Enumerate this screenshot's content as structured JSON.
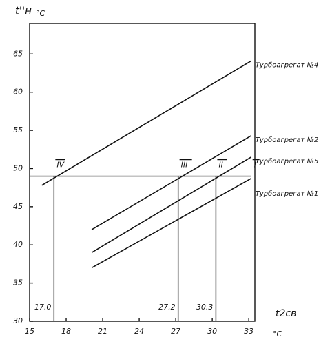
{
  "chart_data": {
    "type": "line",
    "y_label": "t''н",
    "y_unit": "°C",
    "x_label": "t2св",
    "x_unit": "°C",
    "xlim": [
      15,
      33.5
    ],
    "ylim": [
      30,
      69
    ],
    "xticks": [
      15,
      18,
      21,
      24,
      27,
      30,
      33
    ],
    "yticks": [
      30,
      35,
      40,
      45,
      50,
      55,
      60,
      65
    ],
    "series": [
      {
        "name": "Турбоагрегат №4",
        "color": "#111111",
        "x": [
          16.0,
          33.2
        ],
        "values": [
          47.8,
          64.1
        ]
      },
      {
        "name": "Турбоагрегат №2",
        "color": "#111111",
        "x": [
          20.1,
          33.2
        ],
        "values": [
          42.0,
          54.3
        ]
      },
      {
        "name": "Турбоагрегат №5",
        "color": "#111111",
        "x": [
          20.1,
          33.2
        ],
        "values": [
          39.0,
          51.5
        ]
      },
      {
        "name": "Турбоагрегат №1",
        "color": "#111111",
        "x": [
          20.1,
          33.2
        ],
        "values": [
          37.0,
          48.7
        ]
      }
    ],
    "hline": 49,
    "vlines": [
      {
        "value": 17.0,
        "label": "17.0"
      },
      {
        "value": 27.2,
        "label": "27,2"
      },
      {
        "value": 30.3,
        "label": "30,3"
      }
    ],
    "annotations": [
      {
        "text": "IV",
        "x": 17.0
      },
      {
        "text": "III",
        "x": 27.2
      },
      {
        "text": "II",
        "x": 30.3
      },
      {
        "text": "I",
        "x": 33.2
      }
    ]
  }
}
